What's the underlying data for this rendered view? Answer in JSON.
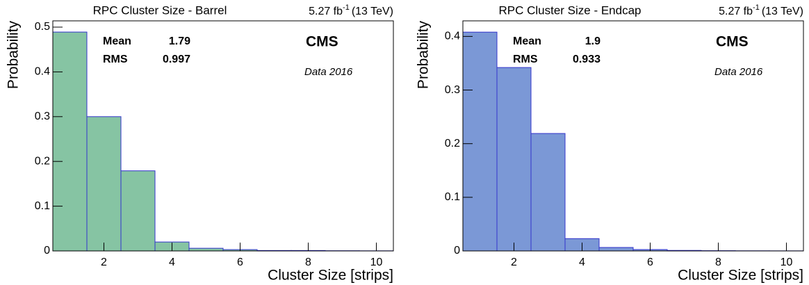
{
  "chart_data": [
    {
      "type": "histogram",
      "title": "RPC Cluster Size - Barrel",
      "lumi": "5.27 fb",
      "lumi_sup": "-1",
      "energy": "(13 TeV)",
      "xlabel": "Cluster Size [strips]",
      "ylabel": "Probability",
      "stats": [
        {
          "label": "Mean",
          "value": 1.79
        },
        {
          "label": "RMS",
          "value": 0.997
        }
      ],
      "experiment": "CMS",
      "dataset": "Data 2016",
      "bins": [
        0.5,
        1.5,
        2.5,
        3.5,
        4.5,
        5.5,
        6.5,
        7.5,
        8.5,
        9.5,
        10.5
      ],
      "values": [
        0.489,
        0.3,
        0.179,
        0.02,
        0.006,
        0.003,
        0.001,
        0.001,
        0.0005,
        0.0003
      ],
      "color": "#86c4a3",
      "edge_color": "#3333cc",
      "xlim": [
        0.5,
        10.5
      ],
      "xticks": [
        2,
        4,
        6,
        8,
        10
      ],
      "ylim": [
        0,
        0.514
      ],
      "yticks": [
        0,
        0.1,
        0.2,
        0.3,
        0.4,
        0.5
      ]
    },
    {
      "type": "histogram",
      "title": "RPC Cluster Size - Endcap",
      "lumi": "5.27 fb",
      "lumi_sup": "-1",
      "energy": "(13 TeV)",
      "xlabel": "Cluster Size [strips]",
      "ylabel": "Probability",
      "stats": [
        {
          "label": "Mean",
          "value": 1.9
        },
        {
          "label": "RMS",
          "value": 0.933
        }
      ],
      "experiment": "CMS",
      "dataset": "Data 2016",
      "bins": [
        0.5,
        1.5,
        2.5,
        3.5,
        4.5,
        5.5,
        6.5,
        7.5,
        8.5,
        9.5,
        10.5
      ],
      "values": [
        0.408,
        0.342,
        0.219,
        0.023,
        0.0065,
        0.0026,
        0.001,
        0.0005,
        0.0003,
        0.0002
      ],
      "color": "#7b98d6",
      "edge_color": "#3333cc",
      "xlim": [
        0.5,
        10.5
      ],
      "xticks": [
        2,
        4,
        6,
        8,
        10
      ],
      "ylim": [
        0,
        0.429
      ],
      "yticks": [
        0,
        0.1,
        0.2,
        0.3,
        0.4
      ]
    }
  ]
}
